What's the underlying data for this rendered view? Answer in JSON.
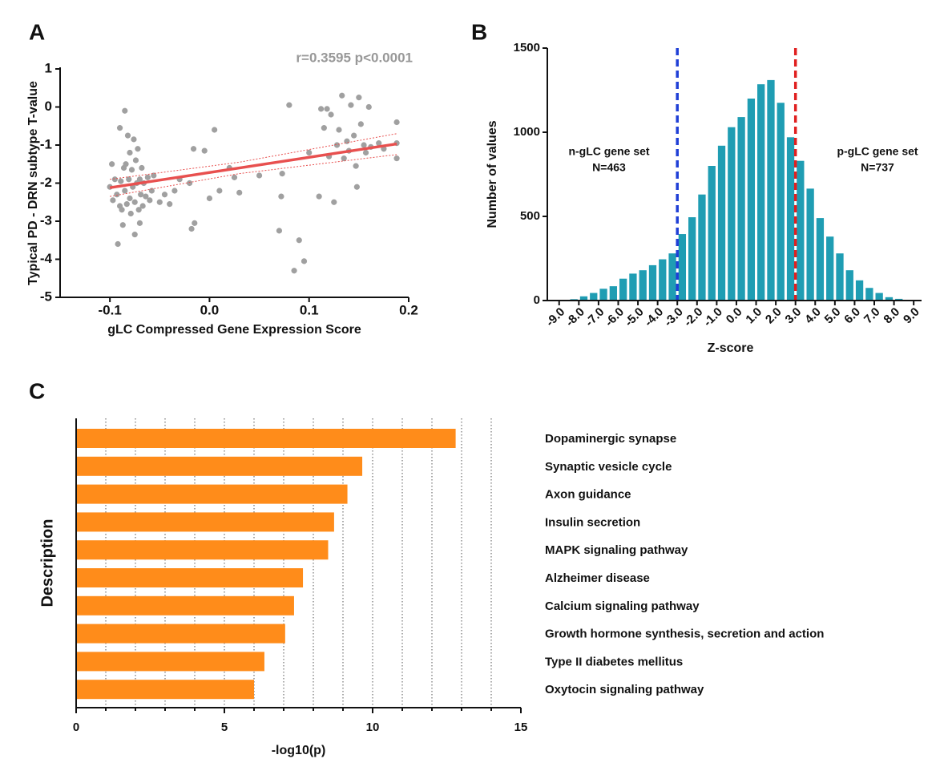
{
  "chart_data": [
    {
      "type": "scatter",
      "panel": "A",
      "annotation": "r=0.3595  p<0.0001",
      "xlabel": "gLC Compressed Gene Expression Score",
      "ylabel": "Typical PD - DRN subtype T-value",
      "color": "#a0a0a0",
      "fit_color": "#e8504f",
      "xlim": [
        -0.15,
        0.2
      ],
      "xticks": [
        -0.1,
        {
          "value": 0,
          "label": "0.0"
        },
        0.1,
        0.2
      ],
      "ylim": [
        -5,
        1
      ],
      "yticks": [
        -5,
        -4,
        -3,
        -2,
        -1,
        0,
        1
      ],
      "x": [
        -0.1,
        -0.098,
        -0.097,
        -0.095,
        -0.093,
        -0.092,
        -0.09,
        -0.09,
        -0.089,
        -0.088,
        -0.087,
        -0.086,
        -0.085,
        -0.085,
        -0.084,
        -0.083,
        -0.082,
        -0.081,
        -0.08,
        -0.08,
        -0.079,
        -0.078,
        -0.077,
        -0.076,
        -0.075,
        -0.075,
        -0.074,
        -0.073,
        -0.072,
        -0.071,
        -0.07,
        -0.07,
        -0.069,
        -0.068,
        -0.067,
        -0.066,
        -0.064,
        -0.062,
        -0.06,
        -0.058,
        -0.056,
        -0.05,
        -0.045,
        -0.04,
        -0.035,
        -0.03,
        -0.02,
        -0.018,
        -0.016,
        -0.015,
        -0.005,
        0.0,
        0.005,
        0.01,
        0.02,
        0.025,
        0.03,
        0.05,
        0.07,
        0.072,
        0.073,
        0.08,
        0.085,
        0.09,
        0.095,
        0.1,
        0.11,
        0.112,
        0.115,
        0.118,
        0.12,
        0.122,
        0.125,
        0.128,
        0.13,
        0.133,
        0.135,
        0.138,
        0.14,
        0.142,
        0.145,
        0.147,
        0.148,
        0.15,
        0.152,
        0.155,
        0.157,
        0.16,
        0.162,
        0.17,
        0.175,
        0.188,
        0.188,
        0.188
      ],
      "y": [
        -2.1,
        -1.5,
        -2.45,
        -1.9,
        -2.3,
        -3.6,
        -2.6,
        -0.55,
        -1.95,
        -2.7,
        -3.1,
        -1.6,
        -0.1,
        -2.2,
        -1.5,
        -2.55,
        -0.75,
        -1.9,
        -2.4,
        -1.2,
        -2.8,
        -1.65,
        -2.1,
        -0.85,
        -3.35,
        -2.5,
        -1.4,
        -2.0,
        -1.1,
        -2.7,
        -1.9,
        -3.05,
        -2.3,
        -1.6,
        -2.6,
        -2.0,
        -2.35,
        -1.85,
        -2.45,
        -2.2,
        -1.8,
        -2.5,
        -2.3,
        -2.55,
        -2.2,
        -1.9,
        -2.0,
        -3.2,
        -1.1,
        -3.05,
        -1.15,
        -2.4,
        -0.6,
        -2.2,
        -1.6,
        -1.85,
        -2.25,
        -1.8,
        -3.25,
        -2.35,
        -1.75,
        0.05,
        -4.3,
        -3.5,
        -4.05,
        -1.2,
        -2.35,
        -0.05,
        -0.55,
        -0.05,
        -1.3,
        -0.2,
        -2.5,
        -1.0,
        -0.6,
        0.3,
        -1.35,
        -0.9,
        -1.15,
        0.05,
        -0.75,
        -1.55,
        -2.1,
        0.25,
        -0.45,
        -1.0,
        -1.2,
        0.0,
        -1.05,
        -0.95,
        -1.1,
        -0.4,
        -0.95,
        -1.35
      ],
      "fit": {
        "x": [
          -0.1,
          0.188
        ],
        "y": [
          -2.12,
          -0.97
        ]
      },
      "band_upper": {
        "x": [
          -0.1,
          0.03,
          0.188
        ],
        "y": [
          -1.9,
          -1.45,
          -0.7
        ]
      },
      "band_lower": {
        "x": [
          -0.1,
          0.03,
          0.188
        ],
        "y": [
          -2.35,
          -1.75,
          -1.25
        ]
      }
    },
    {
      "type": "histogram",
      "panel": "B",
      "xlabel": "Z-score",
      "ylabel": "Number of values",
      "color": "#1f9db3",
      "annotations": [
        "n-gLC gene set",
        "N=463",
        "p-gLC gene set",
        "N=737"
      ],
      "vlines": [
        {
          "x": -3,
          "color": "#1f3fd6"
        },
        {
          "x": 3,
          "color": "#e02020"
        }
      ],
      "bins": [
        -9,
        -8.5,
        -8,
        -7.5,
        -7,
        -6.5,
        -6,
        -5.5,
        -5,
        -4.5,
        -4,
        -3.5,
        -3,
        -2.5,
        -2,
        -1.5,
        -1,
        -0.5,
        0,
        0.5,
        1,
        1.5,
        2,
        2.5,
        3,
        3.5,
        4,
        4.5,
        5,
        5.5,
        6,
        6.5,
        7,
        7.5,
        8,
        8.5,
        9
      ],
      "counts": [
        2,
        8,
        25,
        45,
        70,
        85,
        130,
        160,
        180,
        210,
        245,
        280,
        395,
        495,
        630,
        800,
        920,
        1030,
        1090,
        1200,
        1285,
        1310,
        1175,
        970,
        830,
        665,
        490,
        380,
        280,
        180,
        120,
        75,
        45,
        20,
        10,
        3
      ],
      "xlim": [
        -9.6,
        9.4
      ],
      "xticks": [
        {
          "value": -9,
          "label": "-9.0"
        },
        {
          "value": -8,
          "label": "-8.0"
        },
        {
          "value": -7,
          "label": "-7.0"
        },
        {
          "value": -6,
          "label": "-6.0"
        },
        {
          "value": -5,
          "label": "-5.0"
        },
        {
          "value": -4,
          "label": "-4.0"
        },
        {
          "value": -3,
          "label": "-3.0"
        },
        {
          "value": -2,
          "label": "-2.0"
        },
        {
          "value": -1,
          "label": "-1.0"
        },
        {
          "value": 0,
          "label": "0.0"
        },
        {
          "value": 1,
          "label": "1.0"
        },
        {
          "value": 2,
          "label": "2.0"
        },
        {
          "value": 3,
          "label": "3.0"
        },
        {
          "value": 4,
          "label": "4.0"
        },
        {
          "value": 5,
          "label": "5.0"
        },
        {
          "value": 6,
          "label": "6.0"
        },
        {
          "value": 7,
          "label": "7.0"
        },
        {
          "value": 8,
          "label": "8.0"
        },
        {
          "value": 9,
          "label": "9.0"
        }
      ],
      "ylim": [
        0,
        1500
      ],
      "yticks": [
        0,
        500,
        1000,
        1500
      ]
    },
    {
      "type": "hbar",
      "panel": "C",
      "xlabel": "-log10(p)",
      "ylabel": "Description",
      "color": "#ff8c1a",
      "categories": [
        "Dopaminergic synapse",
        "Synaptic vesicle cycle",
        "Axon guidance",
        "Insulin secretion",
        "MAPK signaling pathway",
        "Alzheimer disease",
        "Calcium signaling pathway",
        "Growth hormone synthesis, secretion and action",
        "Type II diabetes mellitus",
        "Oxytocin signaling pathway"
      ],
      "values": [
        12.8,
        9.65,
        9.15,
        8.7,
        8.5,
        7.65,
        7.35,
        7.05,
        6.35,
        6.0
      ],
      "xlim": [
        0,
        15
      ],
      "xticks": [
        0,
        5,
        10,
        15
      ],
      "minor_xticks": [
        1,
        2,
        3,
        4,
        5,
        6,
        7,
        8,
        9,
        10,
        11,
        12,
        13,
        14
      ],
      "grid": true
    }
  ]
}
